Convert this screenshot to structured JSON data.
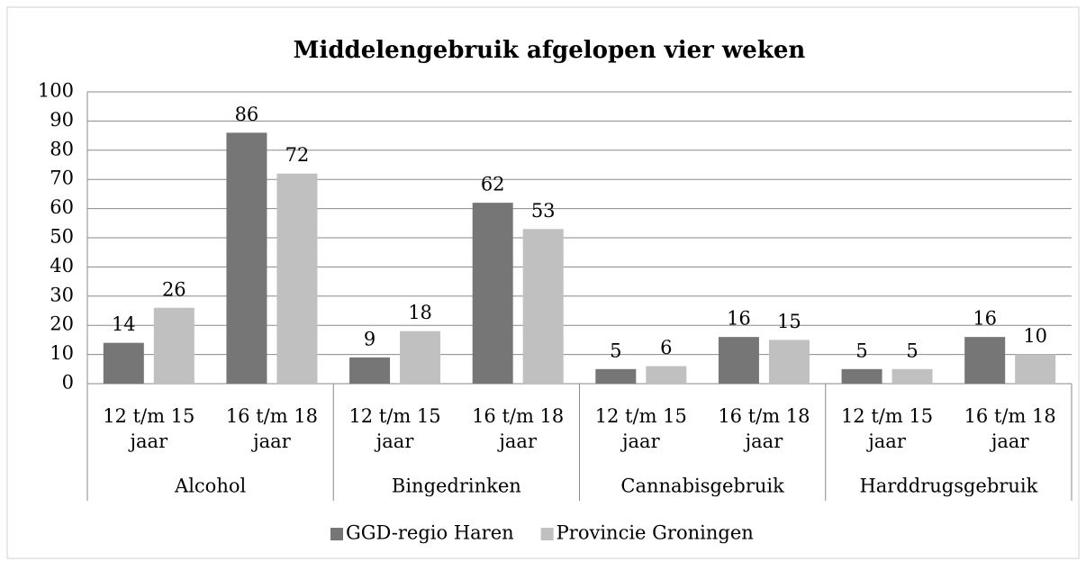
{
  "chart_data": {
    "type": "bar",
    "title": "Middelengebruik afgelopen vier  weken",
    "groups": [
      "Alcohol",
      "Bingedrinken",
      "Cannabisgebruik",
      "Harddrugsgebruik"
    ],
    "categories": [
      "12 t/m 15 jaar",
      "16 t/m 18 jaar",
      "12 t/m 15 jaar",
      "16 t/m 18 jaar",
      "12 t/m 15 jaar",
      "16 t/m 18 jaar",
      "12 t/m 15 jaar",
      "16 t/m 18 jaar"
    ],
    "series": [
      {
        "name": "GGD-regio Haren",
        "color": "#767676",
        "values": [
          14,
          86,
          9,
          62,
          5,
          16,
          5,
          16
        ]
      },
      {
        "name": "Provincie Groningen",
        "color": "#c0c0c0",
        "values": [
          26,
          72,
          18,
          53,
          6,
          15,
          5,
          10
        ]
      }
    ],
    "ylim": [
      0,
      100
    ],
    "yticks": [
      0,
      10,
      20,
      30,
      40,
      50,
      60,
      70,
      80,
      90,
      100
    ],
    "grid": true,
    "legend": "bottom"
  }
}
